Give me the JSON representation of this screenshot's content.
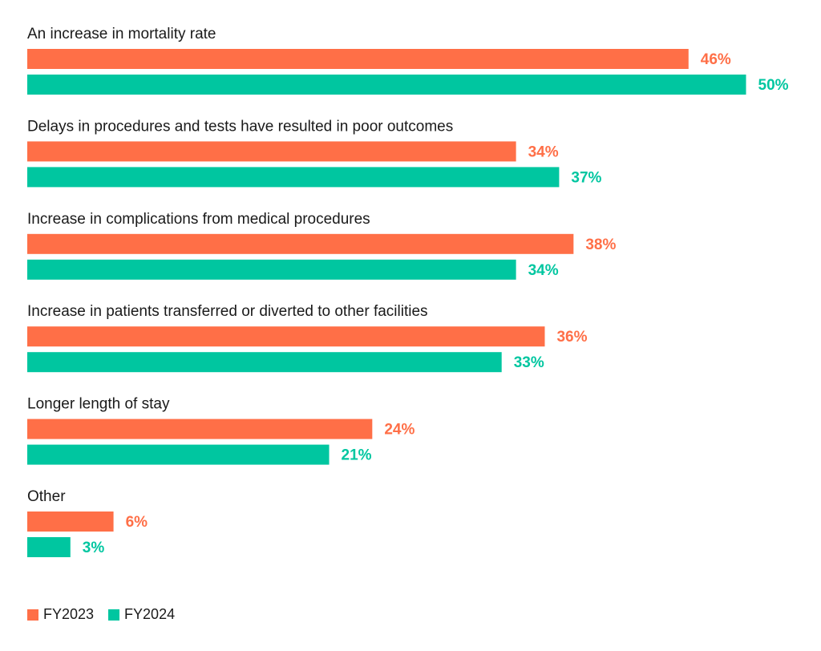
{
  "chart_data": {
    "type": "bar",
    "orientation": "horizontal",
    "categories": [
      "An increase in mortality rate",
      "Delays in procedures and tests have resulted in poor outcomes",
      "Increase in complications from medical procedures",
      "Increase in patients transferred or diverted to other facilities",
      "Longer length of stay",
      "Other"
    ],
    "series": [
      {
        "name": "FY2023",
        "color": "#ff6f47",
        "values": [
          46,
          34,
          38,
          36,
          24,
          6
        ],
        "labels": [
          "46%",
          "34%",
          "38%",
          "36%",
          "24%",
          "6%"
        ]
      },
      {
        "name": "FY2024",
        "color": "#00c6a0",
        "values": [
          50,
          37,
          34,
          33,
          21,
          3
        ],
        "labels": [
          "50%",
          "37%",
          "34%",
          "33%",
          "21%",
          "3%"
        ]
      }
    ],
    "xlim": [
      0,
      50
    ],
    "grid": false,
    "legend_position": "bottom-left"
  }
}
